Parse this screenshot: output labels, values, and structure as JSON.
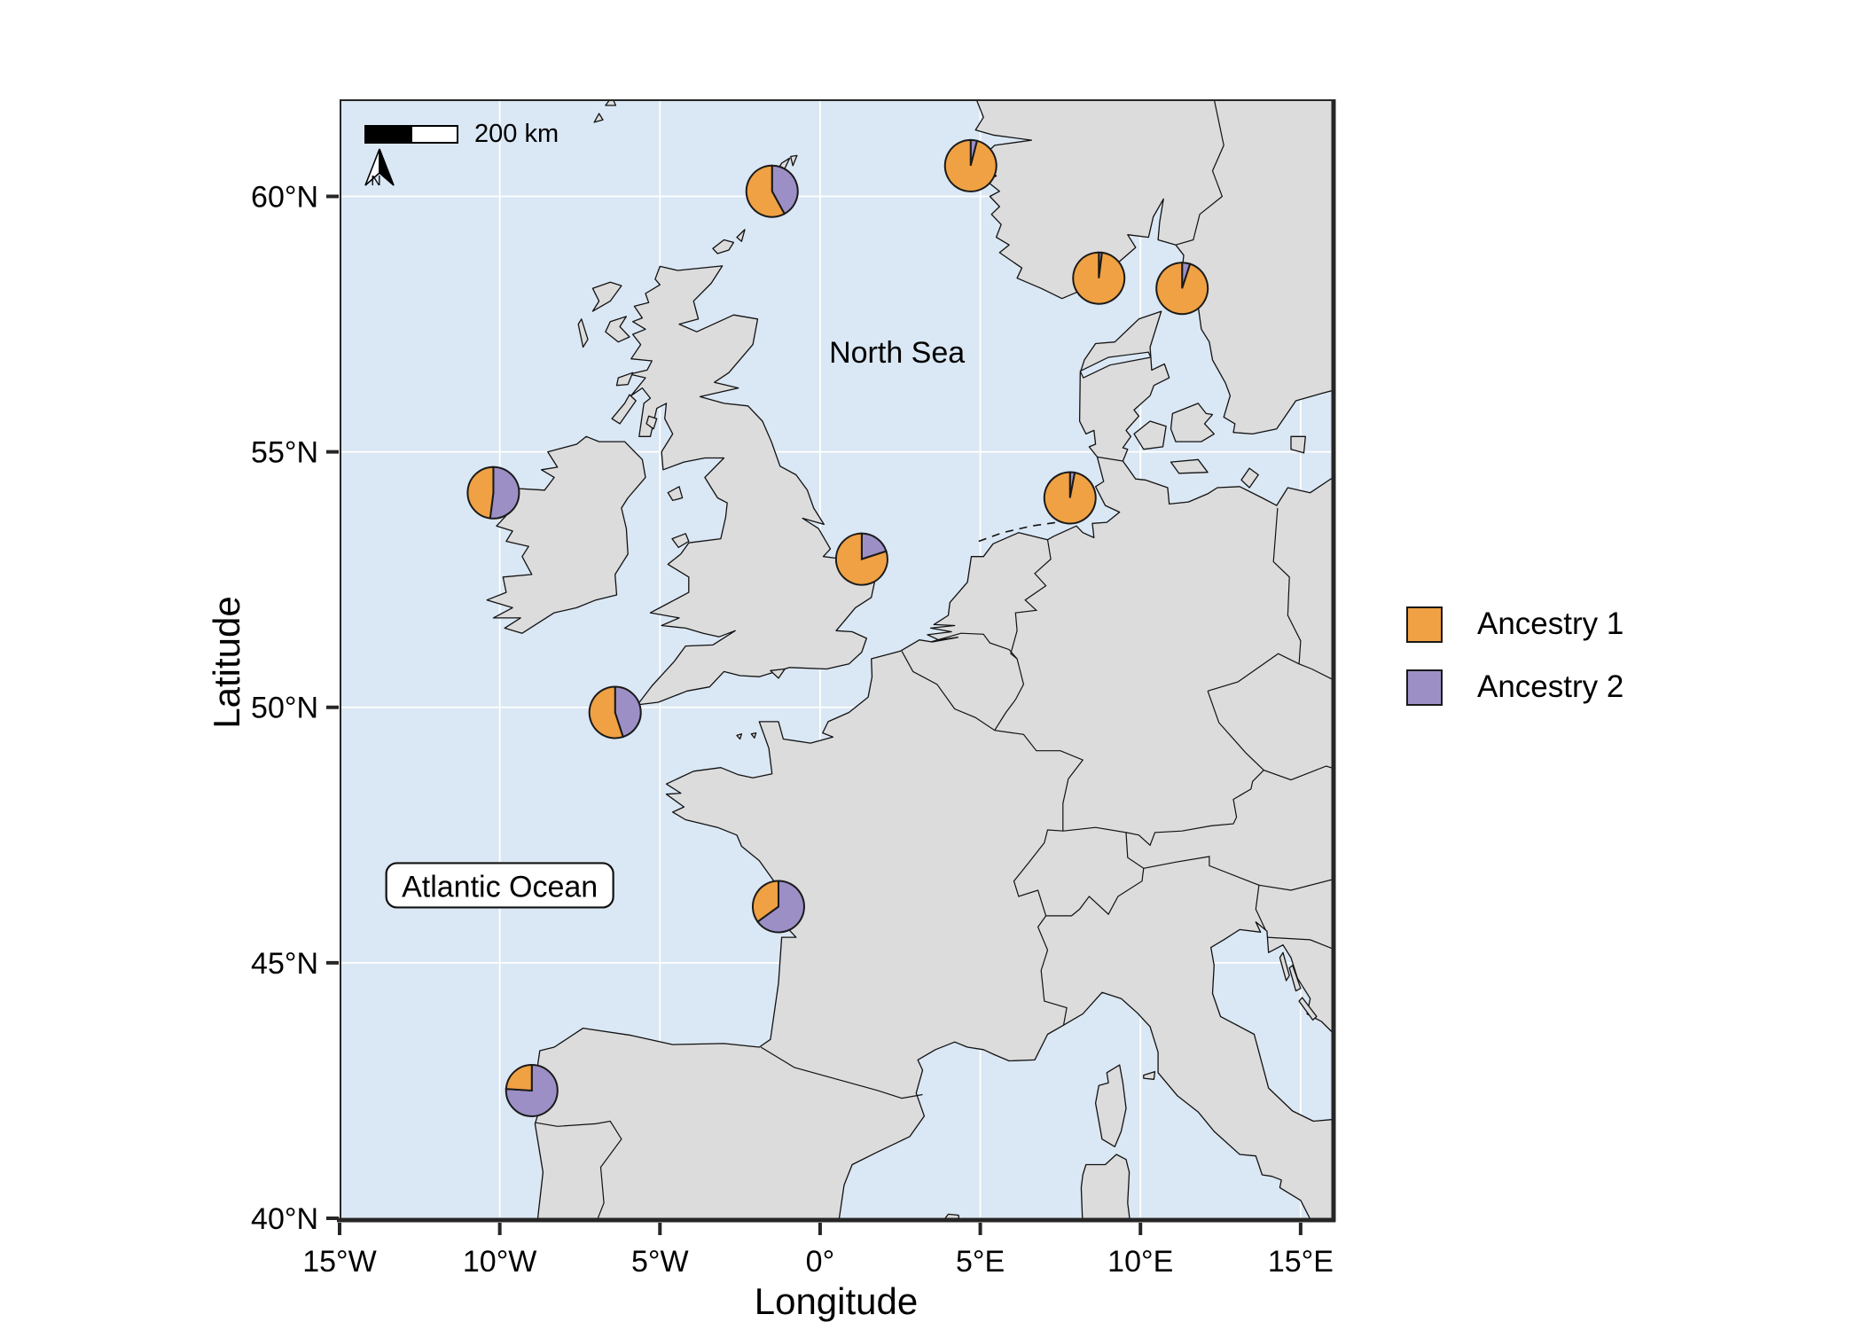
{
  "figure": {
    "background": "#FFFFFF"
  },
  "map": {
    "sea_labels": [
      {
        "text": "North Sea",
        "lon": 2.4,
        "lat": 56.95,
        "boxed": false
      },
      {
        "text": "Atlantic Ocean",
        "lon": -10.0,
        "lat": 46.5,
        "boxed": true
      }
    ],
    "scale_bar": {
      "label": "200 km"
    },
    "north_arrow": {
      "label": "N"
    },
    "colors": {
      "ocean": "#DAE7F4",
      "land": "#DCDCDC",
      "coastline": "#111111",
      "graticule": "#FFFFFF"
    }
  },
  "axes": {
    "x": {
      "title": "Longitude",
      "ticks": [
        {
          "label": "15°W",
          "lon": -15
        },
        {
          "label": "10°W",
          "lon": -10
        },
        {
          "label": "5°W",
          "lon": -5
        },
        {
          "label": "0°",
          "lon": 0
        },
        {
          "label": "5°E",
          "lon": 5
        },
        {
          "label": "10°E",
          "lon": 10
        },
        {
          "label": "15°E",
          "lon": 15
        }
      ]
    },
    "y": {
      "title": "Latitude",
      "ticks": [
        {
          "label": "60°N",
          "lat": 60
        },
        {
          "label": "55°N",
          "lat": 55
        },
        {
          "label": "50°N",
          "lat": 50
        },
        {
          "label": "45°N",
          "lat": 45
        },
        {
          "label": "40°N",
          "lat": 40
        }
      ]
    }
  },
  "legend": {
    "items": [
      {
        "label": "Ancestry 1",
        "color": "#F0A143"
      },
      {
        "label": "Ancestry 2",
        "color": "#9C8FC5"
      }
    ]
  },
  "chart_data": {
    "type": "pie",
    "description": "Pie charts of ancestry proportions plotted on a map of western Europe",
    "series_labels": [
      "Ancestry 1",
      "Ancestry 2"
    ],
    "series_colors": [
      "#F0A143",
      "#9C8FC5"
    ],
    "lon_range": [
      -15,
      16
    ],
    "lat_range": [
      40,
      61.9
    ],
    "pie_radius_px": 29,
    "points": [
      {
        "lon": -1.5,
        "lat": 60.1,
        "values": [
          0.58,
          0.42
        ]
      },
      {
        "lon": 4.7,
        "lat": 60.6,
        "values": [
          0.96,
          0.04
        ]
      },
      {
        "lon": 8.7,
        "lat": 58.4,
        "values": [
          0.98,
          0.02
        ]
      },
      {
        "lon": 11.3,
        "lat": 58.2,
        "values": [
          0.95,
          0.05
        ]
      },
      {
        "lon": 7.8,
        "lat": 54.1,
        "values": [
          0.97,
          0.03
        ]
      },
      {
        "lon": -10.2,
        "lat": 54.2,
        "values": [
          0.48,
          0.52
        ]
      },
      {
        "lon": 1.3,
        "lat": 52.9,
        "values": [
          0.8,
          0.2
        ]
      },
      {
        "lon": -6.4,
        "lat": 49.9,
        "values": [
          0.55,
          0.45
        ]
      },
      {
        "lon": -1.3,
        "lat": 46.1,
        "values": [
          0.35,
          0.65
        ]
      },
      {
        "lon": -9.0,
        "lat": 42.5,
        "values": [
          0.24,
          0.76
        ]
      }
    ]
  }
}
